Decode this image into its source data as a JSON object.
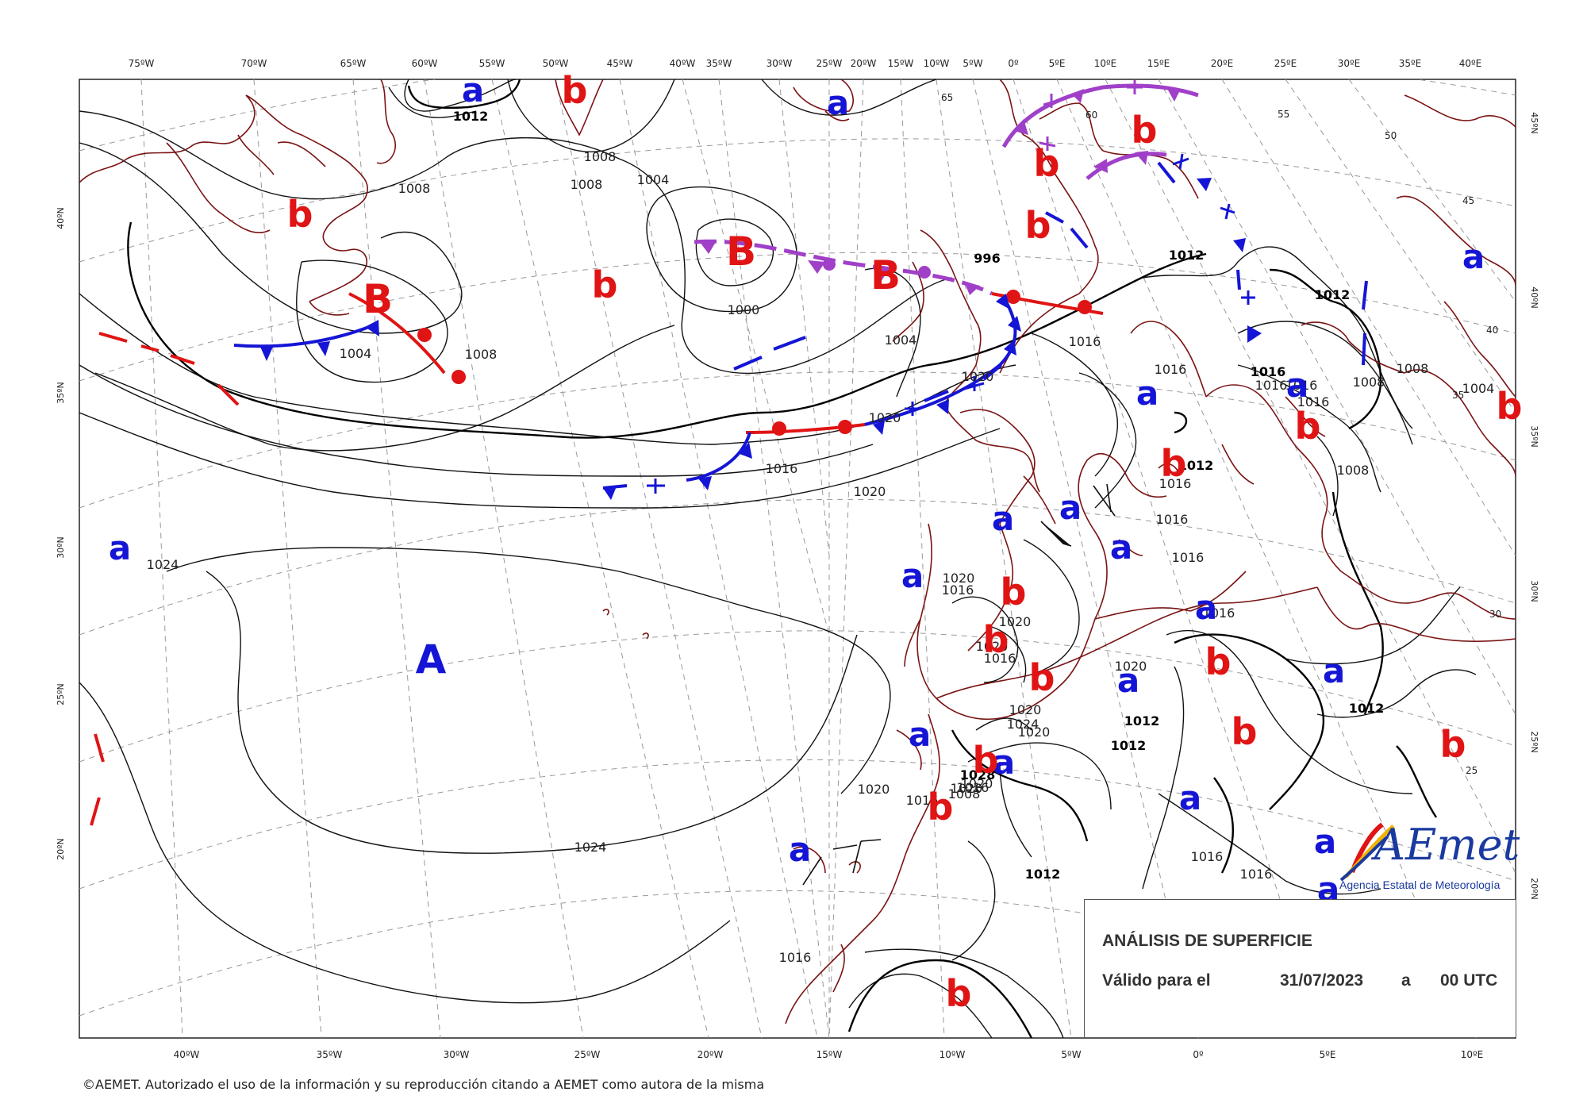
{
  "map": {
    "top_longitudes": [
      "75ºW",
      "70ºW",
      "65ºW",
      "60ºW",
      "55ºW",
      "50ºW",
      "45ºW",
      "40ºW",
      "35ºW",
      "30ºW",
      "25ºW",
      "20ºW",
      "15ºW",
      "10ºW",
      "5ºW",
      "0º",
      "5ºE",
      "10ºE",
      "15ºE",
      "20ºE",
      "25ºE",
      "30ºE",
      "35ºE",
      "40ºE"
    ],
    "bottom_longitudes": [
      "40ºW",
      "35ºW",
      "30ºW",
      "25ºW",
      "20ºW",
      "15ºW",
      "10ºW",
      "5ºW",
      "0º",
      "5ºE",
      "10ºE"
    ],
    "left_latitudes": [
      "40ºN",
      "35ºN",
      "30ºN",
      "25ºN",
      "20ºN"
    ],
    "right_latitudes": [
      "45ºN",
      "40ºN",
      "35ºN",
      "30ºN",
      "25ºN",
      "20ºN"
    ],
    "interior_latitudes": [
      "65",
      "60",
      "55",
      "50",
      "45",
      "40",
      "35",
      "30",
      "25"
    ],
    "isobar_labels": [
      "1012",
      "1008",
      "1008",
      "1008",
      "1004",
      "1000",
      "1004",
      "1008",
      "1004",
      "996",
      "1012",
      "1012",
      "1016",
      "1020",
      "1020",
      "1020",
      "1016",
      "1016",
      "1016",
      "1016",
      "1016",
      "1016",
      "1012",
      "1016",
      "1016",
      "1016",
      "1024",
      "1024",
      "1020",
      "1016",
      "1020",
      "1020",
      "1016",
      "1020",
      "1020",
      "1024",
      "1020",
      "1028",
      "1020",
      "1020",
      "1016",
      "1020",
      "1012",
      "1012",
      "1012",
      "1016",
      "1016",
      "1016",
      "1016",
      "1012",
      "1008",
      "1008",
      "1008",
      "1004",
      "1016",
      "1008"
    ],
    "pressure_centers": {
      "A": "A",
      "B": "B",
      "a": "a",
      "b": "b"
    },
    "colors": {
      "high": "#1515d6",
      "low": "#e01414",
      "warm_front": "#e01414",
      "cold_front": "#1515d6",
      "occluded_front": "#a040c8",
      "coast": "#7a1414",
      "isobar": "#111111"
    }
  },
  "title": {
    "line1": "ANÁLISIS DE SUPERFICIE",
    "valid_label": "Válido para el",
    "date": "31/07/2023",
    "a": "a",
    "time": "00 UTC"
  },
  "logo": {
    "text": "AEmet",
    "agency": "Agencia Estatal de Meteorología"
  },
  "footer": "©AEMET. Autorizado el uso de la información y su reproducción citando a AEMET como autora de la misma"
}
